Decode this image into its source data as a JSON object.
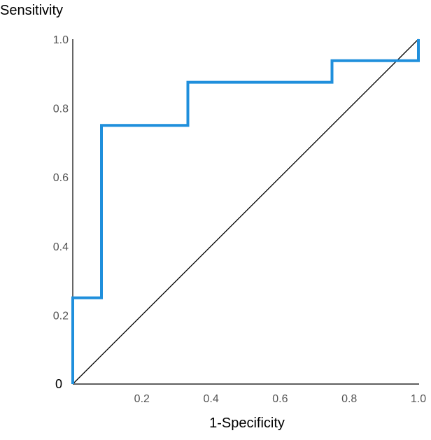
{
  "chart_data": {
    "type": "line",
    "title": "",
    "xlabel": "1-Specificity",
    "ylabel": "Sensitivity",
    "xlim": [
      0,
      1
    ],
    "ylim": [
      0,
      1
    ],
    "grid": false,
    "x_ticks": [
      {
        "value": 0.2,
        "label": "0.2"
      },
      {
        "value": 0.4,
        "label": "0.4"
      },
      {
        "value": 0.6,
        "label": "0.6"
      },
      {
        "value": 0.8,
        "label": "0.8"
      },
      {
        "value": 1.0,
        "label": "1.0"
      }
    ],
    "y_ticks": [
      {
        "value": 0,
        "label": "0"
      },
      {
        "value": 0.2,
        "label": "0.2"
      },
      {
        "value": 0.4,
        "label": "0.4"
      },
      {
        "value": 0.6,
        "label": "0.6"
      },
      {
        "value": 0.8,
        "label": "0.8"
      },
      {
        "value": 1.0,
        "label": "1.0"
      }
    ],
    "series": [
      {
        "kind": "step",
        "color": "#1f8fdc",
        "points": [
          [
            0,
            0
          ],
          [
            0,
            0.25
          ],
          [
            0.083,
            0.25
          ],
          [
            0.083,
            0.75
          ],
          [
            0.333,
            0.75
          ],
          [
            0.333,
            0.875
          ],
          [
            0.75,
            0.875
          ],
          [
            0.75,
            0.9375
          ],
          [
            1.0,
            0.9375
          ],
          [
            1.0,
            1.0
          ]
        ]
      },
      {
        "kind": "reference",
        "color": "#000000",
        "points": [
          [
            0,
            0
          ],
          [
            1,
            1
          ]
        ]
      }
    ]
  }
}
